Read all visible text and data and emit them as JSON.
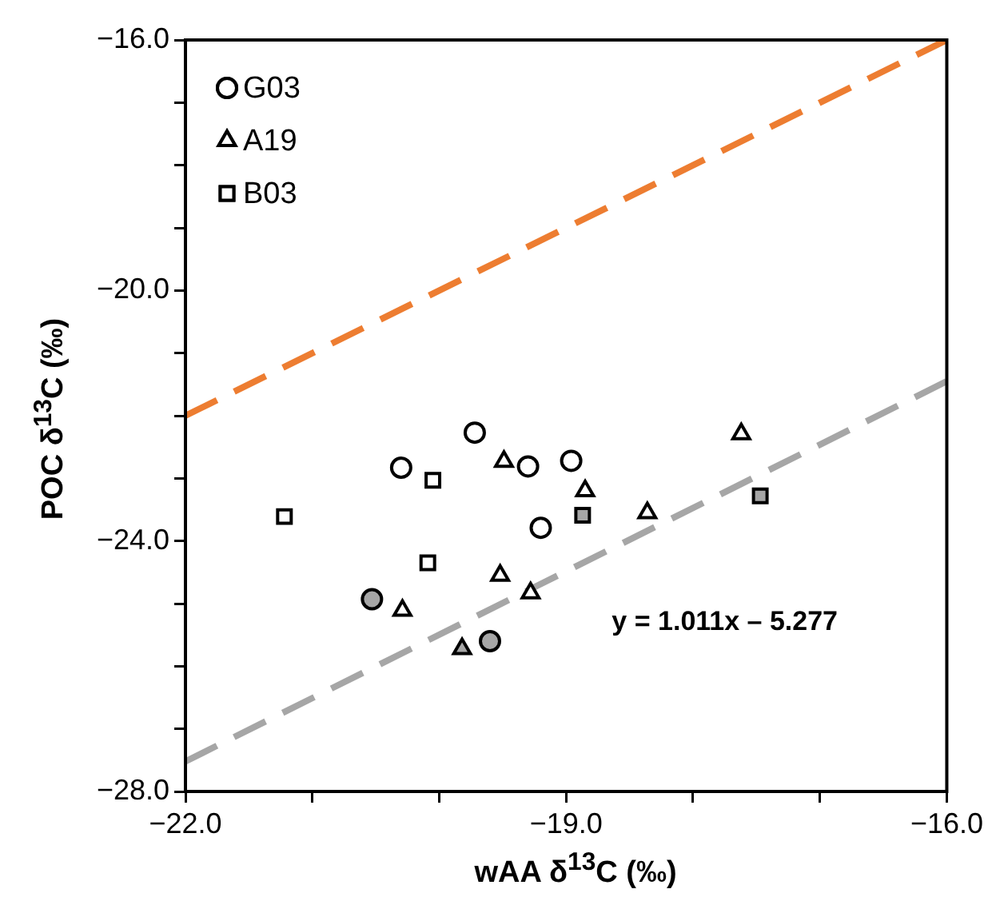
{
  "chart_data": {
    "type": "scatter",
    "xlabel": "wAA δ$^{13}$C (‰)",
    "ylabel": "POC δ$^{13}$C (‰)",
    "xlim": [
      -22,
      -16
    ],
    "ylim": [
      -28,
      -16
    ],
    "xticks": [
      {
        "value": -22,
        "label": "−22.0"
      },
      {
        "value": -21,
        "label": null
      },
      {
        "value": -20,
        "label": null
      },
      {
        "value": -19,
        "label": "−19.0"
      },
      {
        "value": -18,
        "label": null
      },
      {
        "value": -17,
        "label": null
      },
      {
        "value": -16,
        "label": "−16.0"
      }
    ],
    "yticks": [
      {
        "value": -28,
        "label": "−28.0"
      },
      {
        "value": -27,
        "label": null
      },
      {
        "value": -26,
        "label": null
      },
      {
        "value": -25,
        "label": null
      },
      {
        "value": -24,
        "label": "−24.0"
      },
      {
        "value": -23,
        "label": null
      },
      {
        "value": -22,
        "label": null
      },
      {
        "value": -21,
        "label": null
      },
      {
        "value": -20,
        "label": "−20.0"
      },
      {
        "value": -19,
        "label": null
      },
      {
        "value": -18,
        "label": null
      },
      {
        "value": -17,
        "label": null
      },
      {
        "value": -16,
        "label": "−16.0"
      }
    ],
    "grid": false,
    "legend": "top left",
    "series": [
      {
        "name": "G03",
        "marker": "circle",
        "color": "#000000",
        "x": [
          -20.3,
          -19.72,
          -19.3,
          -18.96,
          -19.2,
          -20.53,
          -19.6
        ],
        "values": [
          -22.83,
          -22.27,
          -22.81,
          -22.72,
          -23.79,
          -24.93,
          -25.6
        ],
        "colors": [
          "#ffffff",
          "#ffffff",
          "#ffffff",
          "#ffffff",
          "#ffffff",
          "#a6a6a6",
          "#a6a6a6"
        ]
      },
      {
        "name": "A19",
        "marker": "triangle",
        "color": "#000000",
        "x": [
          -19.49,
          -18.85,
          -18.36,
          -17.62,
          -19.52,
          -20.29,
          -19.28,
          -19.82
        ],
        "values": [
          -22.73,
          -23.2,
          -23.55,
          -22.29,
          -24.55,
          -25.11,
          -24.83,
          -25.72
        ],
        "colors": [
          "#ffffff",
          "#ffffff",
          "#ffffff",
          "#ffffff",
          "#ffffff",
          "#ffffff",
          "#ffffff",
          "#a6a6a6"
        ]
      },
      {
        "name": "B03",
        "marker": "square",
        "color": "#000000",
        "x": [
          -21.22,
          -20.05,
          -20.09,
          -18.87,
          -17.47
        ],
        "values": [
          -23.61,
          -23.03,
          -24.35,
          -23.59,
          -23.28
        ],
        "colors": [
          "#ffffff",
          "#ffffff",
          "#ffffff",
          "#a6a6a6",
          "#a6a6a6"
        ]
      },
      {
        "type": "line",
        "line_style": "dashed",
        "marker": "none",
        "color": "#ed7d31",
        "x": [
          -22,
          -16
        ],
        "values": [
          -22,
          -16
        ]
      },
      {
        "type": "line",
        "line_style": "dashed",
        "marker": "none",
        "color": "#a6a6a6",
        "x": [
          -22,
          -16
        ],
        "values": [
          -27.52,
          -21.45
        ]
      }
    ],
    "annotations": [
      "y = 1.011x – 5.277"
    ]
  }
}
